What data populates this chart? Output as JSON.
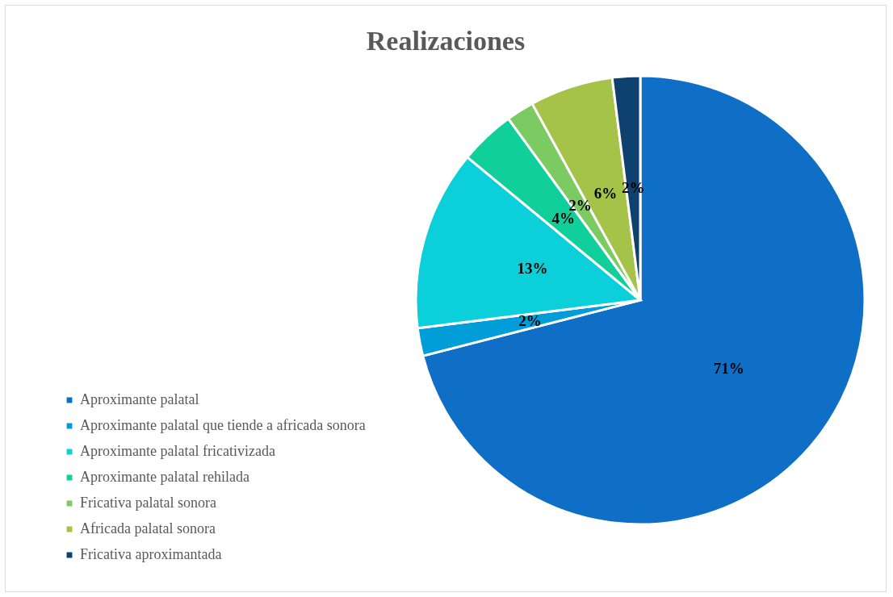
{
  "chart_data": {
    "type": "pie",
    "title": "Realizaciones",
    "categories": [
      "Aproximante palatal",
      "Aproximante palatal que tiende a africada sonora",
      "Aproximante palatal fricativizada",
      "Aproximante palatal rehilada",
      "Fricativa palatal sonora",
      "Africada palatal sonora",
      "Fricativa aproximantada"
    ],
    "values": [
      71,
      2,
      13,
      4,
      2,
      6,
      2
    ],
    "value_labels": [
      "71%",
      "2%",
      "13%",
      "4%",
      "2%",
      "6%",
      "2%"
    ],
    "colors": [
      "#0f6fc6",
      "#009dd9",
      "#0bd0d9",
      "#10cf9b",
      "#7cca62",
      "#a5c249",
      "#0f416f"
    ],
    "legend": "bottom left"
  }
}
